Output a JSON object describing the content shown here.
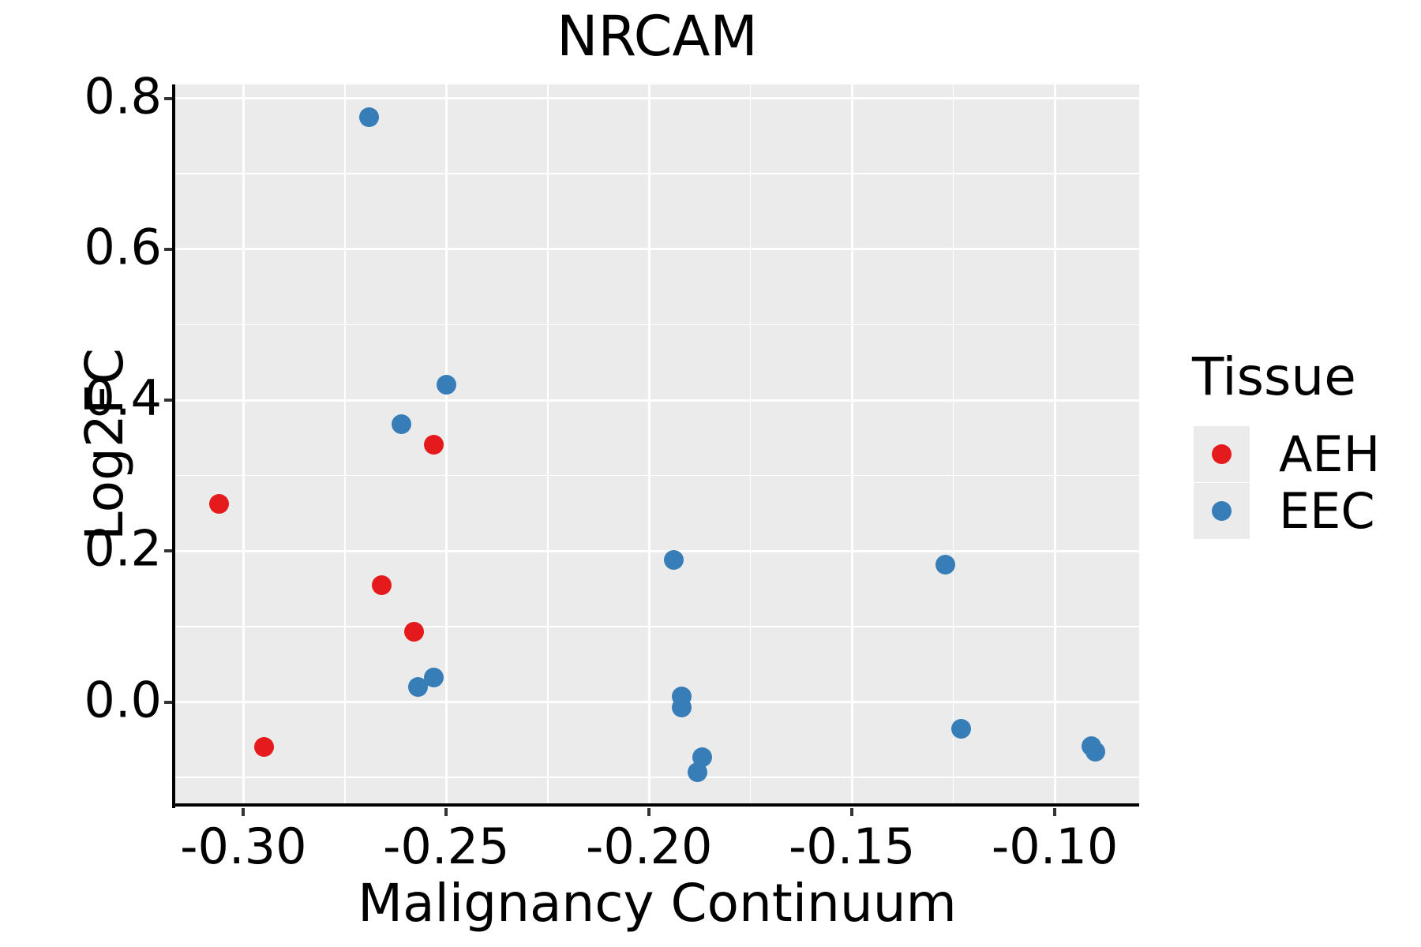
{
  "title": "NRCAM",
  "colors": {
    "panel_bg": "#EBEBEB",
    "grid": "#FFFFFF",
    "axis_line": "#000000",
    "tick": "#333333",
    "text": "#000000",
    "aeh_red": "#E41A1C",
    "eec_blue": "#377EB8"
  },
  "chart_data": {
    "type": "scatter",
    "title": "NRCAM",
    "xlabel": "Malignancy Continuum",
    "ylabel": "Log2FC",
    "legend_title": "Tissue",
    "legend_position": "right",
    "grid": true,
    "xlim": [
      -0.3168,
      -0.0792
    ],
    "ylim": [
      -0.1364,
      0.8184
    ],
    "x_ticks": [
      {
        "value": -0.3,
        "label": "-0.30"
      },
      {
        "value": -0.25,
        "label": "-0.25"
      },
      {
        "value": -0.2,
        "label": "-0.20"
      },
      {
        "value": -0.15,
        "label": "-0.15"
      },
      {
        "value": -0.1,
        "label": "-0.10"
      }
    ],
    "y_ticks": [
      {
        "value": 0.0,
        "label": "0.0"
      },
      {
        "value": 0.2,
        "label": "0.2"
      },
      {
        "value": 0.4,
        "label": "0.4"
      },
      {
        "value": 0.6,
        "label": "0.6"
      },
      {
        "value": 0.8,
        "label": "0.8"
      }
    ],
    "x_minor_ticks": [
      -0.275,
      -0.225,
      -0.175,
      -0.125
    ],
    "y_minor_ticks": [
      -0.1,
      0.1,
      0.3,
      0.5,
      0.7
    ],
    "series": [
      {
        "name": "AEH",
        "color": "#E41A1C",
        "points": [
          [
            -0.306,
            0.263
          ],
          [
            -0.295,
            -0.06
          ],
          [
            -0.266,
            0.155
          ],
          [
            -0.258,
            0.093
          ],
          [
            -0.253,
            0.341
          ]
        ]
      },
      {
        "name": "EEC",
        "color": "#377EB8",
        "points": [
          [
            -0.269,
            0.775
          ],
          [
            -0.261,
            0.368
          ],
          [
            -0.25,
            0.42
          ],
          [
            -0.257,
            0.02
          ],
          [
            -0.253,
            0.032
          ],
          [
            -0.194,
            0.188
          ],
          [
            -0.192,
            0.007
          ],
          [
            -0.192,
            -0.007
          ],
          [
            -0.187,
            -0.073
          ],
          [
            -0.188,
            -0.093
          ],
          [
            -0.127,
            0.182
          ],
          [
            -0.123,
            -0.036
          ],
          [
            -0.091,
            -0.059
          ],
          [
            -0.09,
            -0.066
          ]
        ]
      }
    ]
  }
}
